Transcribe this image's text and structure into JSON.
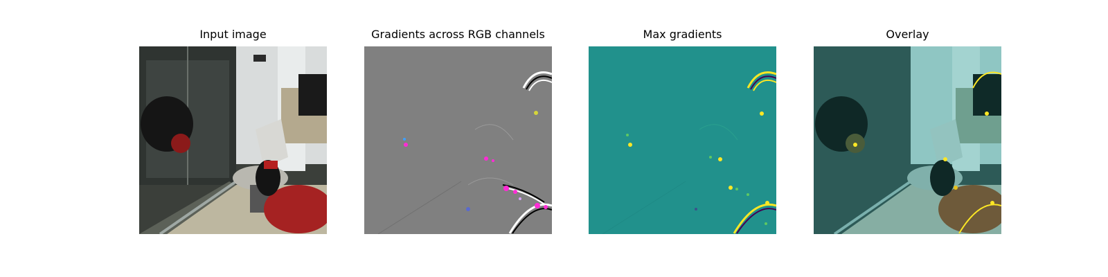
{
  "panels": [
    {
      "title": "Input image",
      "kind": "photo"
    },
    {
      "title": "Gradients across RGB channels",
      "kind": "rgb-gradient"
    },
    {
      "title": "Max gradients",
      "kind": "max-gradient-heatmap"
    },
    {
      "title": "Overlay",
      "kind": "overlay"
    }
  ],
  "colors": {
    "gradient_background": "#808080",
    "heatmap_background": "#21918c",
    "heatmap_high": "#fde725",
    "heatmap_mid": "#5ec962",
    "overlay_tint": "#4fb3b0",
    "highlight_magenta": "#ff2bd6"
  }
}
